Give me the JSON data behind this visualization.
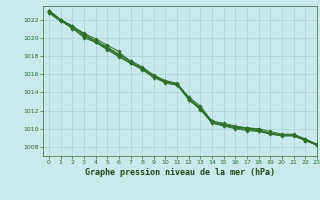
{
  "title": "",
  "xlabel": "Graphe pression niveau de la mer (hPa)",
  "ylabel": "",
  "background_color": "#c8eaea",
  "grid_color": "#a8d4d4",
  "line_color": "#2d6e2d",
  "xlim": [
    -0.5,
    23
  ],
  "ylim": [
    1007.0,
    1023.5
  ],
  "yticks": [
    1008,
    1010,
    1012,
    1014,
    1016,
    1018,
    1020,
    1022
  ],
  "xticks": [
    0,
    1,
    2,
    3,
    4,
    5,
    6,
    7,
    8,
    9,
    10,
    11,
    12,
    13,
    14,
    15,
    16,
    17,
    18,
    19,
    20,
    21,
    22,
    23
  ],
  "series": [
    [
      1023.0,
      1022.0,
      1021.3,
      1020.5,
      1019.9,
      1019.2,
      1018.5,
      1017.3,
      1016.6,
      1015.8,
      1015.0,
      1014.8,
      1013.4,
      1012.2,
      1010.7,
      1010.4,
      1010.1,
      1010.1,
      1009.9,
      1009.5,
      1009.3,
      1009.3,
      1008.7,
      1008.2
    ],
    [
      1022.8,
      1022.0,
      1021.1,
      1020.0,
      1019.5,
      1018.8,
      1018.0,
      1017.2,
      1016.6,
      1015.8,
      1015.2,
      1014.9,
      1013.2,
      1012.2,
      1010.9,
      1010.5,
      1010.2,
      1010.0,
      1009.8,
      1009.5,
      1009.3,
      1009.3,
      1008.8,
      1008.3
    ],
    [
      1023.0,
      1022.0,
      1021.3,
      1020.4,
      1019.7,
      1019.0,
      1018.2,
      1017.5,
      1016.8,
      1015.9,
      1015.3,
      1015.0,
      1013.5,
      1012.5,
      1010.8,
      1010.6,
      1010.3,
      1010.1,
      1010.0,
      1009.7,
      1009.4,
      1009.4,
      1008.9,
      1008.3
    ],
    [
      1022.9,
      1021.9,
      1021.0,
      1020.2,
      1019.5,
      1018.7,
      1017.9,
      1017.2,
      1016.5,
      1015.6,
      1015.1,
      1014.8,
      1013.2,
      1012.1,
      1010.6,
      1010.3,
      1010.0,
      1009.8,
      1009.7,
      1009.4,
      1009.2,
      1009.2,
      1008.7,
      1008.2
    ],
    [
      1022.7,
      1021.8,
      1021.2,
      1020.3,
      1019.6,
      1018.9,
      1018.1,
      1017.4,
      1016.7,
      1015.7,
      1015.2,
      1014.9,
      1013.3,
      1012.3,
      1010.7,
      1010.4,
      1010.1,
      1009.9,
      1009.8,
      1009.5,
      1009.3,
      1009.3,
      1008.8,
      1008.2
    ]
  ]
}
